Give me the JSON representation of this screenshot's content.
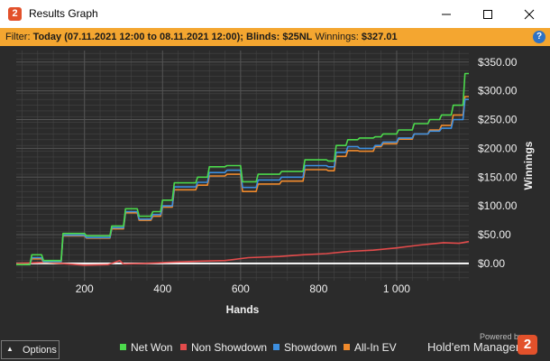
{
  "window": {
    "title": "Results Graph",
    "app_icon": "2",
    "controls": [
      "minimize-icon",
      "maximize-icon",
      "close-icon"
    ]
  },
  "filter": {
    "prefix": "Filter:",
    "period": "Today (07.11.2021 12:00 to 08.11.2021 12:00);",
    "blinds_label": "Blinds:",
    "blinds_value": "$25NL",
    "winnings_label": "Winnings:",
    "winnings_value": "$327.01",
    "help_icon": "?"
  },
  "options_button": {
    "label": "Options",
    "icon": "caret-up-icon"
  },
  "branding": {
    "powered_by": "Powered by",
    "name": "Hold'em Manager",
    "logo_text": "2"
  },
  "chart_data": {
    "type": "line",
    "xlabel": "Hands",
    "ylabel": "Winnings",
    "xlim": [
      25,
      1185
    ],
    "ylim": [
      -30,
      370
    ],
    "x_ticks": [
      200,
      400,
      600,
      800,
      1000
    ],
    "x_tick_labels": [
      "200",
      "400",
      "600",
      "800",
      "1 000"
    ],
    "y_ticks": [
      0,
      50,
      100,
      150,
      200,
      250,
      300,
      350
    ],
    "y_tick_labels": [
      "$0.00",
      "$50.00",
      "$100.00",
      "$150.00",
      "$200.00",
      "$250.00",
      "$300.00",
      "$350.00"
    ],
    "grid": true,
    "legend_position": "bottom",
    "colors": {
      "background": "#2b2b2b",
      "grid": "#444444",
      "zero_line": "#ffffff"
    },
    "series": [
      {
        "name": "Net Won",
        "color": "#4cd94c",
        "x": [
          25,
          60,
          65,
          90,
          95,
          140,
          145,
          200,
          205,
          265,
          270,
          300,
          305,
          335,
          340,
          370,
          375,
          395,
          400,
          425,
          430,
          485,
          490,
          515,
          520,
          560,
          565,
          600,
          605,
          640,
          645,
          700,
          705,
          760,
          765,
          820,
          825,
          840,
          845,
          870,
          875,
          900,
          905,
          940,
          945,
          960,
          965,
          1000,
          1005,
          1040,
          1045,
          1080,
          1085,
          1110,
          1115,
          1140,
          1145,
          1170,
          1175,
          1185
        ],
        "y": [
          -2,
          -2,
          15,
          15,
          5,
          5,
          52,
          52,
          48,
          48,
          65,
          65,
          95,
          95,
          82,
          82,
          90,
          90,
          110,
          110,
          140,
          140,
          150,
          150,
          168,
          168,
          170,
          170,
          142,
          142,
          155,
          155,
          160,
          160,
          180,
          180,
          178,
          178,
          205,
          205,
          215,
          215,
          218,
          218,
          220,
          220,
          225,
          225,
          232,
          232,
          243,
          243,
          250,
          250,
          258,
          258,
          275,
          275,
          330,
          330
        ]
      },
      {
        "name": "Non Showdown",
        "color": "#e24b4b",
        "x": [
          25,
          100,
          140,
          200,
          260,
          290,
          300,
          350,
          420,
          500,
          560,
          620,
          700,
          760,
          820,
          880,
          940,
          1000,
          1060,
          1120,
          1160,
          1185
        ],
        "y": [
          0,
          2,
          0,
          -3,
          -2,
          5,
          -1,
          0,
          2,
          4,
          5,
          10,
          12,
          15,
          17,
          21,
          23,
          27,
          32,
          36,
          35,
          38
        ]
      },
      {
        "name": "Showdown",
        "color": "#3d8fe0",
        "x": [
          25,
          60,
          65,
          90,
          95,
          140,
          145,
          200,
          205,
          265,
          270,
          300,
          305,
          335,
          340,
          370,
          375,
          395,
          400,
          425,
          430,
          485,
          490,
          515,
          520,
          560,
          565,
          600,
          605,
          640,
          645,
          700,
          705,
          760,
          765,
          820,
          825,
          840,
          845,
          870,
          875,
          900,
          905,
          940,
          945,
          960,
          965,
          1000,
          1005,
          1040,
          1045,
          1080,
          1085,
          1110,
          1115,
          1140,
          1145,
          1170,
          1175,
          1185
        ],
        "y": [
          -2,
          -2,
          10,
          10,
          3,
          3,
          49,
          49,
          45,
          45,
          62,
          62,
          90,
          90,
          77,
          77,
          85,
          85,
          100,
          100,
          133,
          133,
          141,
          141,
          158,
          158,
          162,
          162,
          132,
          132,
          145,
          145,
          150,
          150,
          170,
          170,
          168,
          168,
          193,
          193,
          203,
          203,
          200,
          200,
          205,
          205,
          211,
          211,
          218,
          218,
          225,
          225,
          230,
          230,
          235,
          235,
          250,
          250,
          285,
          285
        ]
      },
      {
        "name": "All-In EV",
        "color": "#f08a2c",
        "x": [
          25,
          60,
          65,
          90,
          95,
          140,
          145,
          200,
          205,
          265,
          270,
          300,
          305,
          335,
          340,
          370,
          375,
          395,
          400,
          425,
          430,
          485,
          490,
          515,
          520,
          560,
          565,
          600,
          605,
          640,
          645,
          700,
          705,
          760,
          765,
          820,
          825,
          840,
          845,
          870,
          875,
          900,
          905,
          940,
          945,
          960,
          965,
          1000,
          1005,
          1040,
          1045,
          1080,
          1085,
          1110,
          1115,
          1140,
          1145,
          1170,
          1175,
          1185
        ],
        "y": [
          -2,
          -2,
          8,
          8,
          2,
          2,
          48,
          48,
          44,
          44,
          60,
          60,
          88,
          88,
          75,
          75,
          82,
          82,
          98,
          98,
          128,
          128,
          136,
          136,
          152,
          152,
          155,
          155,
          125,
          125,
          138,
          138,
          143,
          143,
          163,
          163,
          161,
          161,
          186,
          186,
          196,
          196,
          195,
          195,
          203,
          203,
          208,
          208,
          216,
          216,
          225,
          225,
          232,
          232,
          240,
          240,
          258,
          258,
          290,
          290
        ]
      }
    ]
  }
}
